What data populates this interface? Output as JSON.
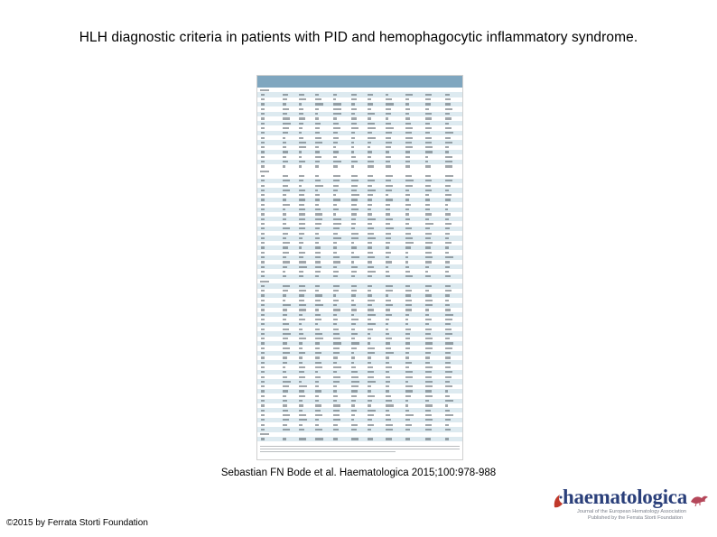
{
  "slide": {
    "title": "HLH diagnostic criteria in patients with PID and hemophagocytic inflammatory syndrome.",
    "citation": "Sebastian FN Bode et al. Haematologica 2015;100:978-988",
    "copyright": "©2015 by Ferrata Storti Foundation"
  },
  "logo": {
    "wordmark": "haematologica",
    "line1": "Journal of the European Hematology Association",
    "line2": "Published by the Ferrata Storti Foundation"
  },
  "table": {
    "colors": {
      "header": "#7fa6bf",
      "alt_row": "#ddeaf0"
    }
  }
}
